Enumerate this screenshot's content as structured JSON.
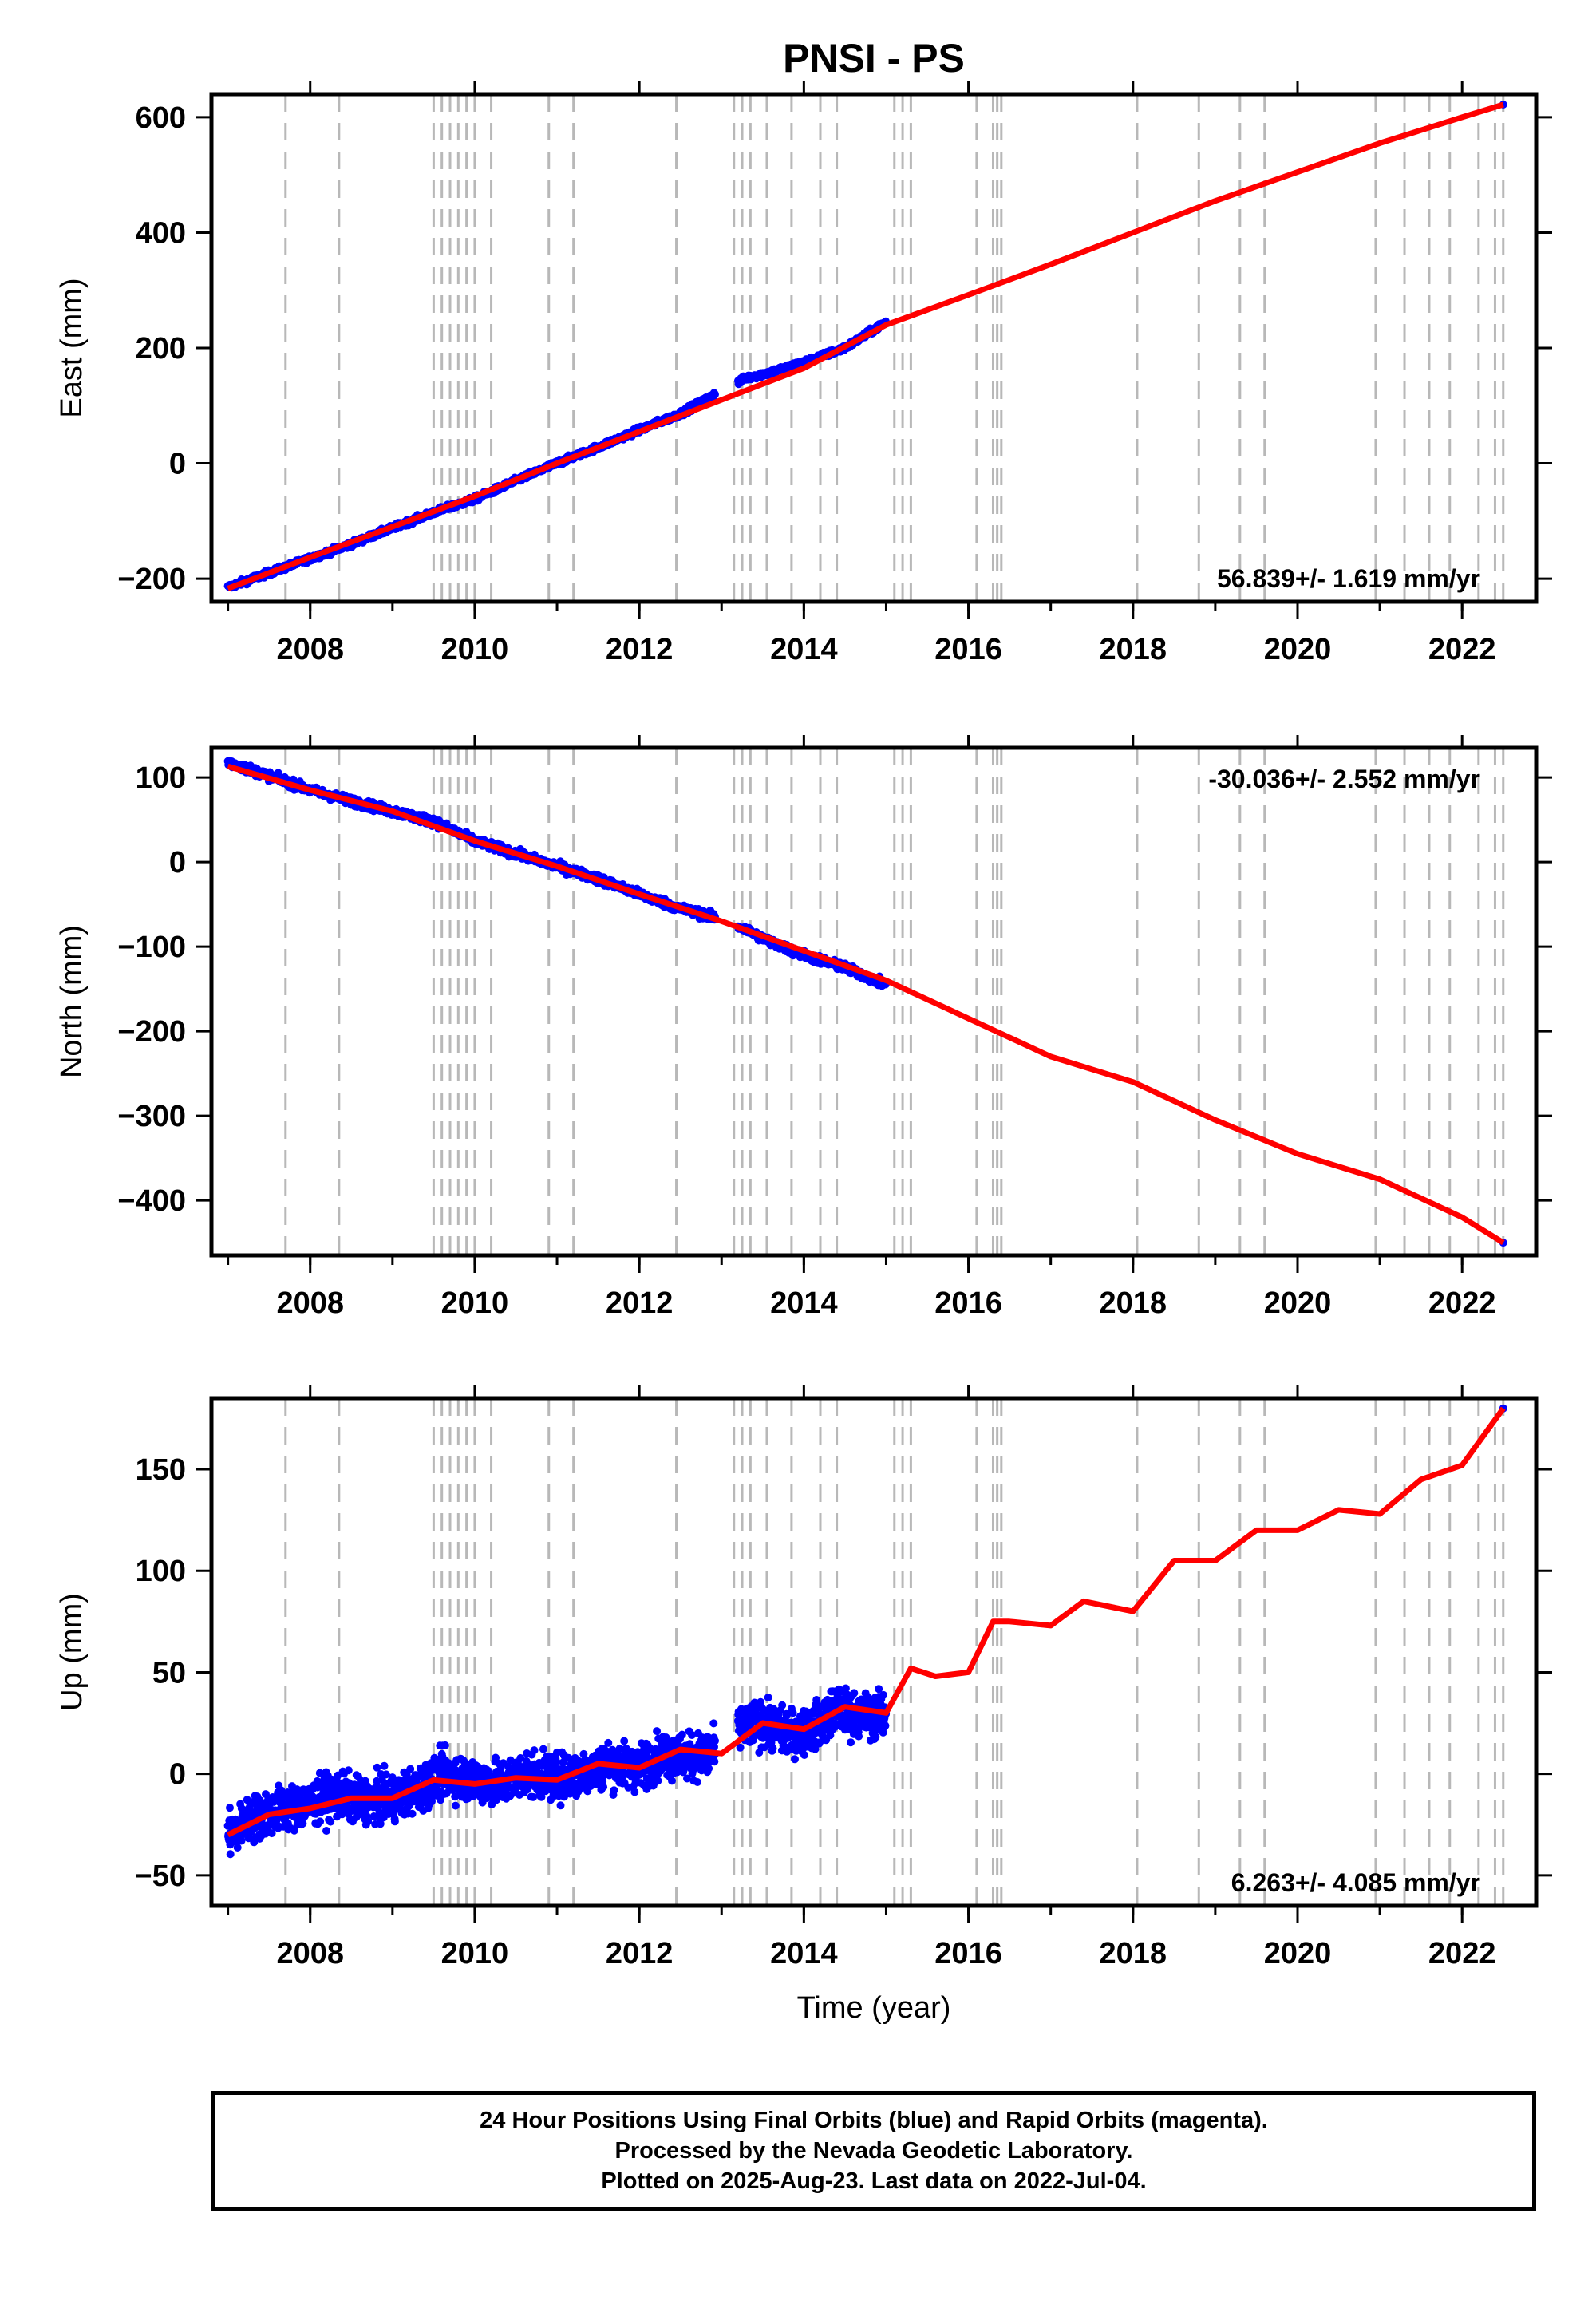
{
  "chart_data": [
    {
      "type": "scatter",
      "title": "PNSI - PS",
      "ylabel": "East (mm)",
      "xlabel": "",
      "xlim": [
        2006.8,
        2022.9
      ],
      "ylim": [
        -240,
        640
      ],
      "xticks": [
        "2008",
        "2010",
        "2012",
        "2014",
        "2016",
        "2018",
        "2020",
        "2022"
      ],
      "yticks": [
        "−200",
        "0",
        "200",
        "400",
        "600"
      ],
      "annotation": "56.839+/- 1.619 mm/yr",
      "annotation_position": "bottom-right",
      "series": [
        {
          "color": "#0000ff",
          "x": [
            2007.0,
            2007.5,
            2008.0,
            2008.5,
            2009.0,
            2009.5,
            2010.0,
            2010.5,
            2011.0,
            2011.5,
            2012.0,
            2012.5,
            2012.9,
            2013.3,
            2013.6,
            2014.0,
            2014.5,
            2015.0
          ],
          "y": [
            -215,
            -190,
            -165,
            -140,
            -112,
            -85,
            -62,
            -30,
            0,
            28,
            58,
            86,
            118,
            148,
            158,
            175,
            200,
            245
          ]
        },
        {
          "color": "#ff0000",
          "x": [
            2007.0,
            2008.0,
            2009.0,
            2010.0,
            2011.0,
            2012.0,
            2013.0,
            2014.0,
            2015.0,
            2016.0,
            2017.0,
            2018.0,
            2019.0,
            2020.0,
            2021.0,
            2022.0,
            2022.5
          ],
          "y": [
            -217,
            -163,
            -110,
            -57,
            0,
            55,
            110,
            165,
            240,
            292,
            345,
            400,
            455,
            505,
            555,
            600,
            622
          ]
        }
      ]
    },
    {
      "type": "scatter",
      "title": "",
      "ylabel": "North (mm)",
      "xlabel": "",
      "xlim": [
        2006.8,
        2022.9
      ],
      "ylim": [
        -465,
        135
      ],
      "xticks": [
        "2008",
        "2010",
        "2012",
        "2014",
        "2016",
        "2018",
        "2020",
        "2022"
      ],
      "yticks": [
        "100",
        "0",
        "−100",
        "−200",
        "−300",
        "−400"
      ],
      "annotation": "-30.036+/- 2.552 mm/yr",
      "annotation_position": "top-right",
      "series": [
        {
          "color": "#0000ff",
          "x": [
            2007.0,
            2007.5,
            2008.0,
            2008.5,
            2009.0,
            2009.5,
            2010.0,
            2010.5,
            2011.0,
            2011.5,
            2012.0,
            2012.5,
            2012.9,
            2013.3,
            2013.6,
            2014.0,
            2014.5,
            2015.0
          ],
          "y": [
            118,
            102,
            85,
            72,
            60,
            48,
            25,
            10,
            -5,
            -20,
            -38,
            -55,
            -65,
            -80,
            -95,
            -110,
            -125,
            -145
          ]
        },
        {
          "color": "#ff0000",
          "x": [
            2007.0,
            2008.0,
            2009.0,
            2010.0,
            2011.0,
            2012.0,
            2013.0,
            2014.0,
            2015.0,
            2016.0,
            2017.0,
            2018.0,
            2019.0,
            2020.0,
            2021.0,
            2022.0,
            2022.5
          ],
          "y": [
            113,
            85,
            60,
            25,
            -5,
            -38,
            -70,
            -105,
            -140,
            -185,
            -230,
            -260,
            -305,
            -345,
            -375,
            -420,
            -450
          ]
        }
      ]
    },
    {
      "type": "scatter",
      "title": "",
      "ylabel": "Up (mm)",
      "xlabel": "Time (year)",
      "xlim": [
        2006.8,
        2022.9
      ],
      "ylim": [
        -65,
        185
      ],
      "xticks": [
        "2008",
        "2010",
        "2012",
        "2014",
        "2016",
        "2018",
        "2020",
        "2022"
      ],
      "yticks": [
        "150",
        "100",
        "50",
        "0",
        "−50"
      ],
      "annotation": "6.263+/- 4.085 mm/yr",
      "annotation_position": "bottom-right",
      "series": [
        {
          "color": "#0000ff",
          "x": [
            2007.0,
            2007.3,
            2007.6,
            2008.0,
            2008.3,
            2008.6,
            2009.0,
            2009.3,
            2009.6,
            2010.0,
            2010.3,
            2010.6,
            2011.0,
            2011.3,
            2011.6,
            2012.0,
            2012.3,
            2012.6,
            2012.9,
            2013.2,
            2013.5,
            2013.8,
            2014.1,
            2014.4,
            2014.7,
            2015.0
          ],
          "y": [
            -30,
            -22,
            -18,
            -15,
            -10,
            -13,
            -12,
            -8,
            0,
            -3,
            -5,
            0,
            -2,
            0,
            5,
            3,
            10,
            8,
            10,
            22,
            25,
            20,
            22,
            32,
            28,
            30
          ]
        },
        {
          "color": "#ff0000",
          "x": [
            2007.0,
            2007.5,
            2008.0,
            2008.5,
            2009.0,
            2009.5,
            2010.0,
            2010.5,
            2011.0,
            2011.5,
            2012.0,
            2012.5,
            2013.0,
            2013.5,
            2014.0,
            2014.5,
            2015.0,
            2015.3,
            2015.6,
            2016.0,
            2016.3,
            2016.5,
            2017.0,
            2017.4,
            2018.0,
            2018.5,
            2019.0,
            2019.5,
            2020.0,
            2020.5,
            2021.0,
            2021.5,
            2022.0,
            2022.5
          ],
          "y": [
            -30,
            -20,
            -17,
            -12,
            -12,
            -3,
            -5,
            -2,
            -3,
            5,
            3,
            12,
            10,
            25,
            22,
            33,
            30,
            52,
            48,
            50,
            75,
            75,
            73,
            85,
            80,
            105,
            105,
            120,
            120,
            130,
            128,
            145,
            152,
            180
          ]
        }
      ]
    }
  ],
  "event_lines_x": [
    2007.7,
    2008.35,
    2009.5,
    2009.6,
    2009.7,
    2009.8,
    2009.9,
    2010.0,
    2010.2,
    2010.9,
    2011.2,
    2012.45,
    2013.15,
    2013.25,
    2013.35,
    2013.55,
    2013.85,
    2014.2,
    2014.4,
    2015.1,
    2015.2,
    2015.3,
    2016.1,
    2016.3,
    2016.35,
    2016.4,
    2018.05,
    2018.8,
    2019.3,
    2019.6,
    2020.95,
    2021.3,
    2021.6,
    2021.85,
    2022.2,
    2022.4,
    2022.5
  ],
  "footer": {
    "line1": "24 Hour Positions Using Final Orbits (blue) and Rapid Orbits (magenta).",
    "line2": "Processed by the Nevada Geodetic Laboratory.",
    "line3": "Plotted on 2025-Aug-23. Last data on 2022-Jul-04."
  }
}
